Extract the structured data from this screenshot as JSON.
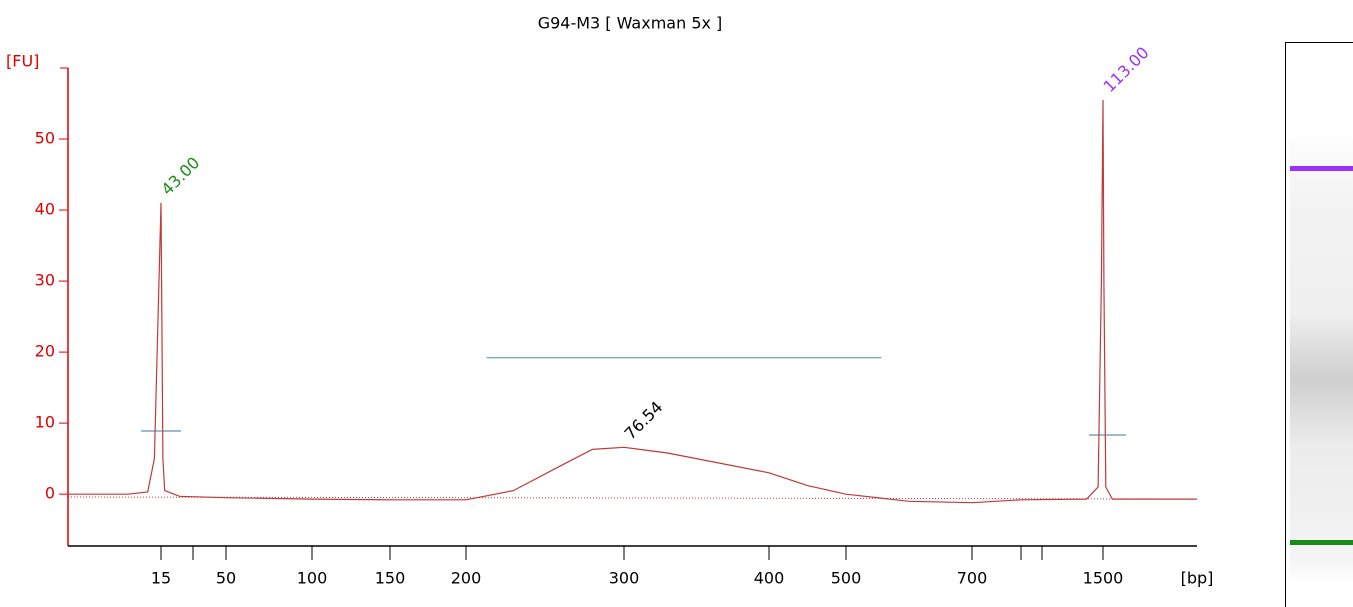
{
  "chart_data": {
    "type": "line",
    "title": "G94-M3  [ Waxman 5x ]",
    "y_label": "[FU]",
    "x_label": "[bp]",
    "ylim": [
      -7.3,
      60
    ],
    "yticks": [
      0,
      10,
      20,
      30,
      40,
      50
    ],
    "xlim": [
      1,
      2500
    ],
    "xticks": [
      15,
      50,
      100,
      150,
      200,
      300,
      400,
      500,
      700,
      1500
    ],
    "axis_color": "#e00000",
    "series": [
      {
        "color": "#c0393b",
        "x": [
          1,
          10,
          13,
          14,
          15,
          16,
          17,
          25,
          50,
          100,
          150,
          200,
          230,
          260,
          280,
          300,
          330,
          400,
          450,
          500,
          600,
          700,
          1000,
          1400,
          1470,
          1490,
          1500,
          1510,
          1530,
          1600,
          2500
        ],
        "values": [
          0,
          0,
          0.3,
          5,
          41,
          5,
          0.5,
          -0.3,
          -0.5,
          -0.7,
          -0.8,
          -0.8,
          0.5,
          4,
          6.3,
          6.6,
          5.8,
          3,
          1.2,
          0,
          -1,
          -1.2,
          -0.8,
          -0.7,
          1,
          30,
          55.5,
          30,
          1,
          -0.7,
          -0.7
        ]
      }
    ],
    "annotations": [
      {
        "text": "43.00",
        "x": 15,
        "y": 41,
        "color": "#1a8a1a"
      },
      {
        "text": "76.54",
        "x": 300,
        "y": 6.6,
        "color": "#000000"
      },
      {
        "text": "113.00",
        "x": 1500,
        "y": 55.5,
        "color": "#9b30ff"
      }
    ],
    "region": {
      "x": [
        213,
        556
      ],
      "y": 19.2,
      "color": "#3a9a9a"
    }
  }
}
